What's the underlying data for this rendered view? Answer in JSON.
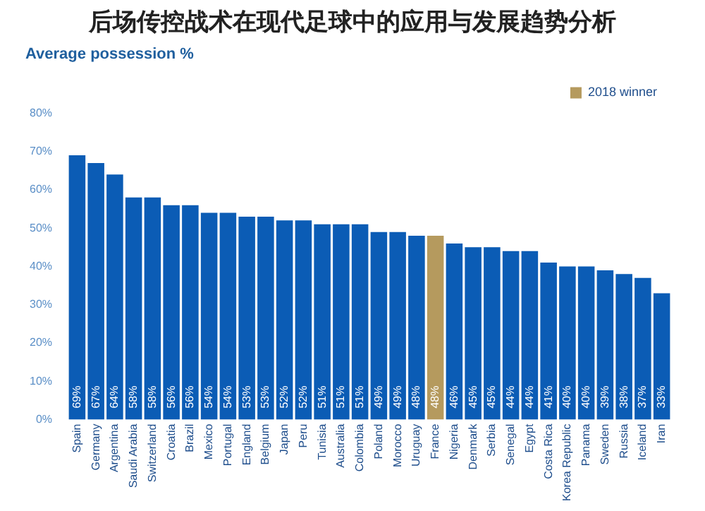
{
  "chart_data": {
    "type": "bar",
    "title": "Average possession %",
    "annotations": [
      "后场传控战术在现代足球中的应用与发展趋势分析"
    ],
    "categories": [
      "Spain",
      "Germany",
      "Argentina",
      "Saudi Arabia",
      "Switzerland",
      "Croatia",
      "Brazil",
      "Mexico",
      "Portugal",
      "England",
      "Belgium",
      "Japan",
      "Peru",
      "Tunisia",
      "Australia",
      "Colombia",
      "Poland",
      "Morocco",
      "Uruguay",
      "France",
      "Nigeria",
      "Denmark",
      "Serbia",
      "Senegal",
      "Egypt",
      "Costa Rica",
      "Korea Republic",
      "Panama",
      "Sweden",
      "Russia",
      "Iceland",
      "Iran"
    ],
    "stacked": true,
    "series": [
      {
        "color": "#0b5cb5",
        "values": [
          69,
          67,
          64,
          58,
          58,
          56,
          56,
          54,
          54,
          53,
          53,
          52,
          52,
          51,
          51,
          51,
          49,
          49,
          48,
          null,
          46,
          45,
          45,
          44,
          44,
          41,
          40,
          40,
          39,
          38,
          37,
          33
        ],
        "value_labels": [
          "69%",
          "67%",
          "64%",
          "58%",
          "58%",
          "56%",
          "56%",
          "54%",
          "54%",
          "53%",
          "53%",
          "52%",
          "52%",
          "51%",
          "51%",
          "51%",
          "49%",
          "49%",
          "48%",
          null,
          "46%",
          "45%",
          "45%",
          "44%",
          "44%",
          "41%",
          "40%",
          "40%",
          "39%",
          "38%",
          "37%",
          "33%"
        ]
      },
      {
        "name": "2018 winner",
        "color": "#b59a5e",
        "values": [
          null,
          null,
          null,
          null,
          null,
          null,
          null,
          null,
          null,
          null,
          null,
          null,
          null,
          null,
          null,
          null,
          null,
          null,
          null,
          48,
          null,
          null,
          null,
          null,
          null,
          null,
          null,
          null,
          null,
          null,
          null,
          null
        ],
        "value_labels": [
          null,
          null,
          null,
          null,
          null,
          null,
          null,
          null,
          null,
          null,
          null,
          null,
          null,
          null,
          null,
          null,
          null,
          null,
          null,
          "48%",
          null,
          null,
          null,
          null,
          null,
          null,
          null,
          null,
          null,
          null,
          null,
          null
        ]
      }
    ],
    "ylim": [
      0,
      80
    ],
    "yticks": [
      {
        "value": 0,
        "label": "0%"
      },
      {
        "value": 10,
        "label": "10%"
      },
      {
        "value": 20,
        "label": "20%"
      },
      {
        "value": 30,
        "label": "30%"
      },
      {
        "value": 40,
        "label": "40%"
      },
      {
        "value": 50,
        "label": "50%"
      },
      {
        "value": 60,
        "label": "60%"
      },
      {
        "value": 70,
        "label": "70%"
      },
      {
        "value": 80,
        "label": "80%"
      }
    ],
    "grid": false,
    "legend": "top right"
  }
}
